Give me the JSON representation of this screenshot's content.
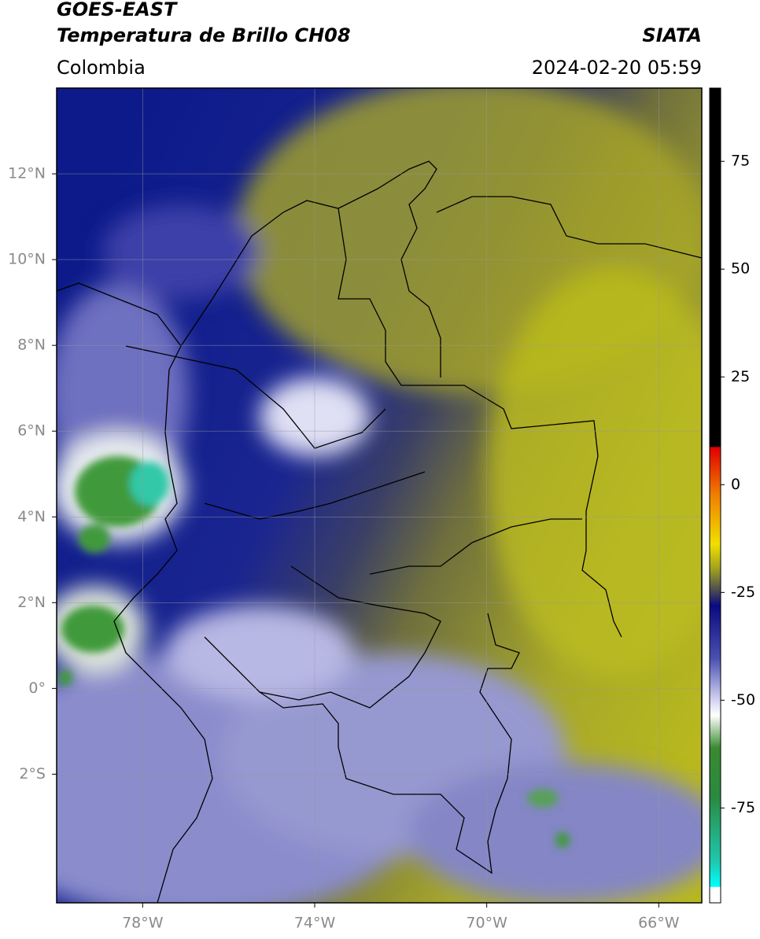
{
  "header": {
    "title": "GOES-EAST",
    "subtitle": "Temperatura de Brillo CH08",
    "source": "SIATA",
    "region": "Colombia",
    "datetime": "2024-02-20 05:59"
  },
  "map": {
    "xlim": [
      -80,
      -65
    ],
    "ylim": [
      -5,
      14
    ],
    "grid": true,
    "xticks": [
      {
        "value": -78,
        "label": "78°W"
      },
      {
        "value": -74,
        "label": "74°W"
      },
      {
        "value": -70,
        "label": "70°W"
      },
      {
        "value": -66,
        "label": "66°W"
      }
    ],
    "yticks": [
      {
        "value": 12,
        "label": "12°N"
      },
      {
        "value": 10,
        "label": "10°N"
      },
      {
        "value": 8,
        "label": "8°N"
      },
      {
        "value": 6,
        "label": "6°N"
      },
      {
        "value": 4,
        "label": "4°N"
      },
      {
        "value": 2,
        "label": "2°N"
      },
      {
        "value": 0,
        "label": "0°"
      },
      {
        "value": -2,
        "label": "2°S"
      }
    ]
  },
  "colorbar": {
    "lim": [
      -97,
      92
    ],
    "ticks": [
      75,
      50,
      25,
      0,
      -25,
      -50,
      -75
    ]
  }
}
